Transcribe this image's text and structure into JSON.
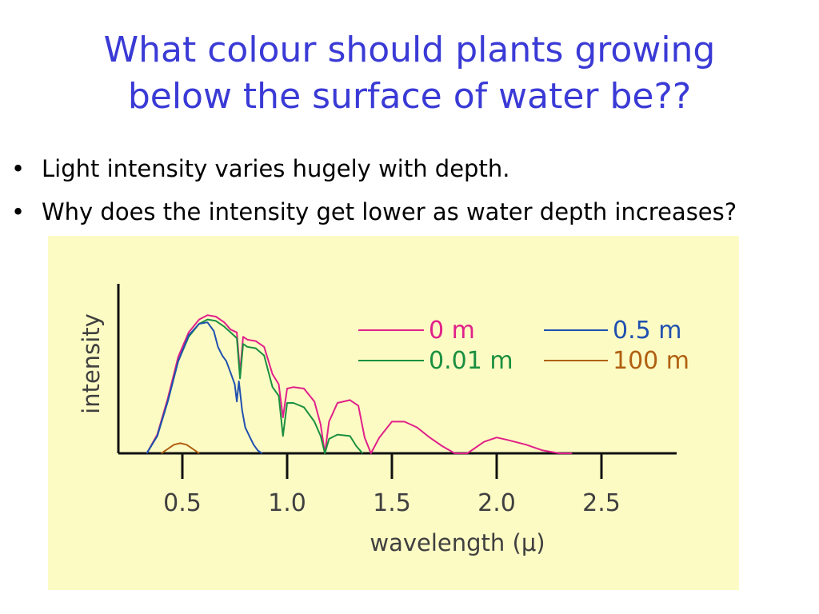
{
  "slide": {
    "title_line1": "What colour should plants growing",
    "title_line2": "below the surface of water be??",
    "bullets": [
      "Light intensity varies hugely with depth.",
      "Why does the intensity get lower as water depth increases?"
    ]
  },
  "chart_data": {
    "type": "line",
    "title": "",
    "xlabel": "wavelength (μ)",
    "ylabel": "intensity",
    "xlim": [
      0.25,
      2.75
    ],
    "ylim": [
      0,
      1.0
    ],
    "xticks": [
      "0.5",
      "1.0",
      "1.5",
      "2.0",
      "2.5"
    ],
    "xtick_values": [
      0.5,
      1.0,
      1.5,
      2.0,
      2.5
    ],
    "grid": false,
    "legend": "top-right",
    "series": [
      {
        "name": "0 m",
        "color": "#e0208a",
        "x": [
          0.33,
          0.38,
          0.43,
          0.48,
          0.53,
          0.58,
          0.62,
          0.66,
          0.7,
          0.73,
          0.76,
          0.775,
          0.79,
          0.81,
          0.85,
          0.89,
          0.93,
          0.96,
          0.98,
          1.0,
          1.03,
          1.08,
          1.13,
          1.16,
          1.18,
          1.2,
          1.24,
          1.3,
          1.34,
          1.37,
          1.4,
          1.44,
          1.5,
          1.56,
          1.62,
          1.68,
          1.74,
          1.8,
          1.86,
          1.94,
          2.0,
          2.06,
          2.14,
          2.22,
          2.3,
          2.36
        ],
        "y": [
          0.0,
          0.13,
          0.38,
          0.67,
          0.84,
          0.93,
          0.96,
          0.95,
          0.91,
          0.86,
          0.84,
          0.56,
          0.81,
          0.79,
          0.78,
          0.74,
          0.55,
          0.48,
          0.25,
          0.45,
          0.46,
          0.45,
          0.36,
          0.2,
          0.0,
          0.22,
          0.35,
          0.37,
          0.33,
          0.11,
          0.0,
          0.11,
          0.22,
          0.22,
          0.18,
          0.11,
          0.05,
          0.0,
          0.0,
          0.08,
          0.11,
          0.09,
          0.06,
          0.02,
          0.0,
          0.0
        ]
      },
      {
        "name": "0.01 m",
        "color": "#1a9040",
        "x": [
          0.33,
          0.38,
          0.43,
          0.48,
          0.53,
          0.58,
          0.62,
          0.66,
          0.7,
          0.73,
          0.76,
          0.775,
          0.79,
          0.81,
          0.85,
          0.89,
          0.93,
          0.96,
          0.98,
          1.0,
          1.03,
          1.08,
          1.13,
          1.16,
          1.18,
          1.2,
          1.24,
          1.3,
          1.33,
          1.36
        ],
        "y": [
          0.0,
          0.12,
          0.36,
          0.64,
          0.81,
          0.9,
          0.93,
          0.92,
          0.88,
          0.84,
          0.8,
          0.52,
          0.76,
          0.74,
          0.73,
          0.68,
          0.46,
          0.4,
          0.12,
          0.35,
          0.35,
          0.32,
          0.22,
          0.12,
          0.0,
          0.1,
          0.13,
          0.12,
          0.05,
          0.0
        ]
      },
      {
        "name": "0.5 m",
        "color": "#2050b0",
        "x": [
          0.33,
          0.38,
          0.43,
          0.48,
          0.53,
          0.58,
          0.62,
          0.65,
          0.67,
          0.69,
          0.71,
          0.73,
          0.75,
          0.76,
          0.77,
          0.785,
          0.8,
          0.82,
          0.84,
          0.86,
          0.88
        ],
        "y": [
          0.0,
          0.12,
          0.36,
          0.64,
          0.82,
          0.9,
          0.91,
          0.85,
          0.74,
          0.68,
          0.64,
          0.56,
          0.48,
          0.36,
          0.5,
          0.3,
          0.18,
          0.12,
          0.06,
          0.02,
          0.0
        ]
      },
      {
        "name": "100 m",
        "color": "#b06010",
        "x": [
          0.4,
          0.43,
          0.46,
          0.49,
          0.52,
          0.55,
          0.58
        ],
        "y": [
          0.0,
          0.03,
          0.06,
          0.07,
          0.06,
          0.03,
          0.0
        ]
      }
    ]
  }
}
